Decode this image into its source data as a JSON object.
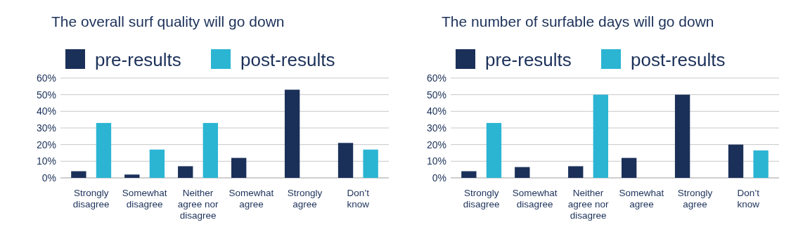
{
  "chart_data": [
    {
      "type": "bar",
      "title": "The overall surf quality will go down",
      "categories": [
        "Strongly disagree",
        "Somewhat disagree",
        "Neither agree nor disagree",
        "Somewhat agree",
        "Strongly agree",
        "Don’t know"
      ],
      "series": [
        {
          "name": "pre-results",
          "color": "#1b3059",
          "values": [
            4,
            2,
            7,
            12,
            53,
            21
          ]
        },
        {
          "name": "post-results",
          "color": "#2bb5d3",
          "values": [
            33,
            17,
            33,
            0,
            0,
            17
          ]
        }
      ],
      "ylim": [
        0,
        60
      ],
      "yticks": [
        {
          "value": 0,
          "label": "0%"
        },
        {
          "value": 10,
          "label": "10%"
        },
        {
          "value": 20,
          "label": "20%"
        },
        {
          "value": 30,
          "label": "30%"
        },
        {
          "value": 40,
          "label": "40%"
        },
        {
          "value": 50,
          "label": "50%"
        },
        {
          "value": 60,
          "label": "60%"
        }
      ],
      "grid": "y",
      "legend": "top"
    },
    {
      "type": "bar",
      "title": "The number of surfable days will go down",
      "categories": [
        "Strongly disagree",
        "Somewhat disagree",
        "Neither agree nor disagree",
        "Somewhat agree",
        "Strongly agree",
        "Don’t know"
      ],
      "series": [
        {
          "name": "pre-results",
          "color": "#1b3059",
          "values": [
            4,
            6.5,
            7,
            12,
            50,
            20
          ]
        },
        {
          "name": "post-results",
          "color": "#2bb5d3",
          "values": [
            33,
            0,
            50,
            0,
            0,
            16.5
          ]
        }
      ],
      "ylim": [
        0,
        60
      ],
      "yticks": [
        {
          "value": 0,
          "label": "0%"
        },
        {
          "value": 10,
          "label": "10%"
        },
        {
          "value": 20,
          "label": "20%"
        },
        {
          "value": 30,
          "label": "30%"
        },
        {
          "value": 40,
          "label": "40%"
        },
        {
          "value": 50,
          "label": "50%"
        },
        {
          "value": 60,
          "label": "60%"
        }
      ],
      "grid": "y",
      "legend": "top"
    }
  ]
}
